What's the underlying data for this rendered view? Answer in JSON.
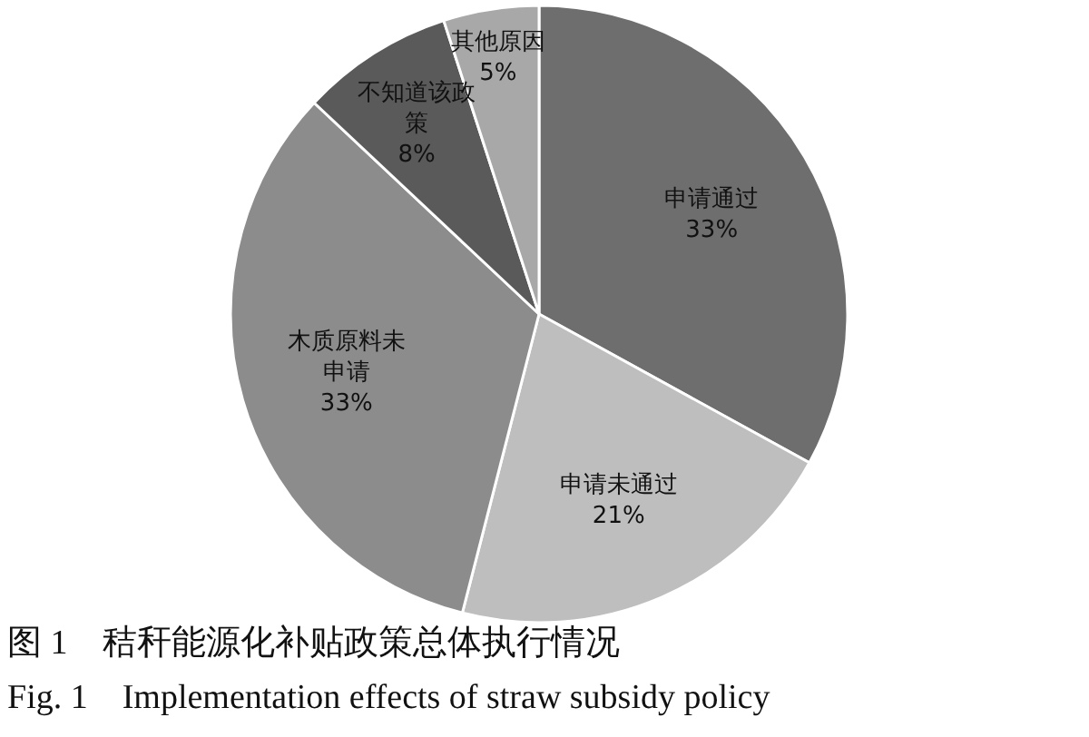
{
  "chart_data": {
    "type": "pie",
    "categories": [
      "申请通过",
      "申请未通过",
      "木质原料未申请",
      "不知道该政策",
      "其他原因"
    ],
    "values": [
      33,
      21,
      33,
      8,
      5
    ],
    "value_labels": [
      "33%",
      "21%",
      "33%",
      "8%",
      "5%"
    ],
    "colors": [
      "#6e6e6e",
      "#bebebe",
      "#8c8c8c",
      "#5a5a5a",
      "#a8a8a8"
    ],
    "legend": false,
    "annotations": [
      "图 1　秸秆能源化补贴政策总体执行情况",
      "Fig. 1　Implementation effects of straw subsidy policy"
    ]
  }
}
